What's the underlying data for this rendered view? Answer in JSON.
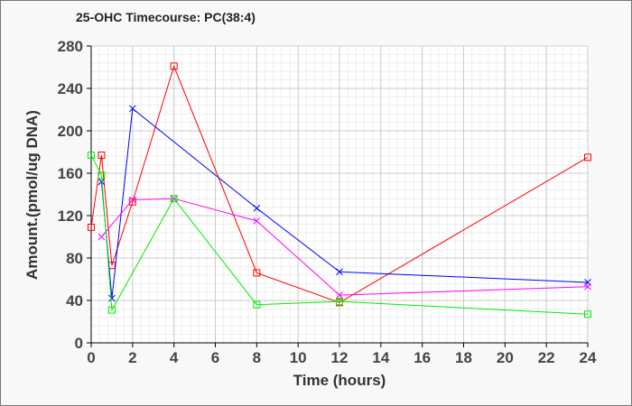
{
  "chart_data": {
    "type": "line",
    "title": "25-OHC Timecourse: PC(38:4)",
    "xlabel": "Time (hours)",
    "ylabel": "Amount.(pmol/ug DNA)",
    "xlim": [
      0,
      24
    ],
    "ylim": [
      0,
      280
    ],
    "xticks": [
      0,
      2,
      4,
      6,
      8,
      10,
      12,
      14,
      16,
      18,
      20,
      22,
      24
    ],
    "yticks": [
      0,
      40,
      80,
      120,
      160,
      200,
      240,
      280
    ],
    "grid": true,
    "series": [
      {
        "name": "red",
        "color": "#ff0000",
        "marker": "square",
        "x": [
          0,
          0.5,
          1,
          2,
          4,
          8,
          12,
          24
        ],
        "y": [
          109,
          177,
          73,
          133,
          261,
          66,
          38,
          175
        ]
      },
      {
        "name": "blue",
        "color": "#0000ff",
        "marker": "x",
        "x": [
          0.5,
          1,
          2,
          8,
          12,
          24
        ],
        "y": [
          152,
          42,
          221,
          127,
          67,
          57
        ]
      },
      {
        "name": "magenta",
        "color": "#ff00ff",
        "marker": "x",
        "x": [
          0.5,
          2,
          4,
          8,
          12,
          24
        ],
        "y": [
          100,
          135,
          136,
          115,
          45,
          53
        ]
      },
      {
        "name": "green",
        "color": "#00ee00",
        "marker": "square",
        "x": [
          0,
          0.5,
          1,
          4,
          8,
          12,
          24
        ],
        "y": [
          177,
          158,
          31,
          136,
          36,
          39,
          27
        ]
      }
    ]
  }
}
